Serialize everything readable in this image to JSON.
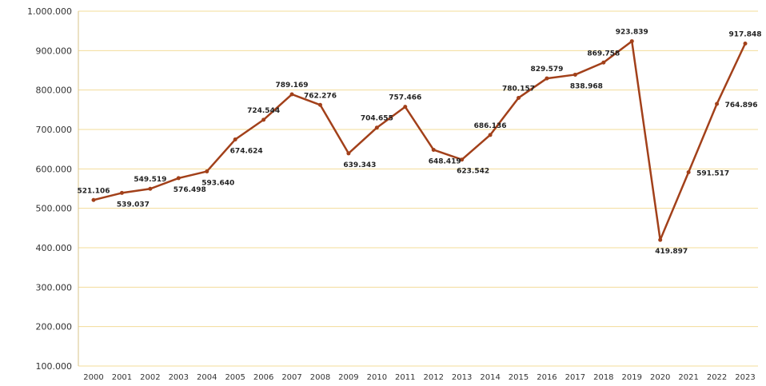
{
  "chart_data": {
    "type": "line",
    "title": "",
    "xlabel": "",
    "ylabel": "",
    "ylim": [
      100000,
      1000000
    ],
    "yticks": [
      "100.000",
      "200.000",
      "300.000",
      "400.000",
      "500.000",
      "600.000",
      "700.000",
      "800.000",
      "900.000",
      "1.000.000"
    ],
    "grid": true,
    "categories": [
      "2000",
      "2001",
      "2002",
      "2003",
      "2004",
      "2005",
      "2006",
      "2007",
      "2008",
      "2009",
      "2010",
      "2011",
      "2012",
      "2013",
      "2014",
      "2015",
      "2016",
      "2017",
      "2018",
      "2019",
      "2020",
      "2021",
      "2022",
      "2023"
    ],
    "series": [
      {
        "name": "",
        "values": [
          521106,
          539037,
          549519,
          576498,
          593640,
          674624,
          724544,
          789169,
          762276,
          639343,
          704655,
          757466,
          648419,
          623542,
          686136,
          780157,
          829579,
          838968,
          869758,
          923839,
          419897,
          591517,
          764896,
          917848
        ],
        "labels": [
          "521.106",
          "539.037",
          "549.519",
          "576.498",
          "593.640",
          "674.624",
          "724.544",
          "789.169",
          "762.276",
          "639.343",
          "704.655",
          "757.466",
          "648.419",
          "623.542",
          "686.136",
          "780.157",
          "829.579",
          "838.968",
          "869.758",
          "923.839",
          "419.897",
          "591.517",
          "764.896",
          "917.848"
        ],
        "label_pos": [
          "above",
          "below",
          "above",
          "below",
          "below",
          "below",
          "above",
          "above",
          "above",
          "below",
          "above",
          "above",
          "below",
          "below",
          "above",
          "above",
          "above",
          "below",
          "above",
          "above",
          "below",
          "right",
          "right",
          "above"
        ]
      }
    ]
  }
}
